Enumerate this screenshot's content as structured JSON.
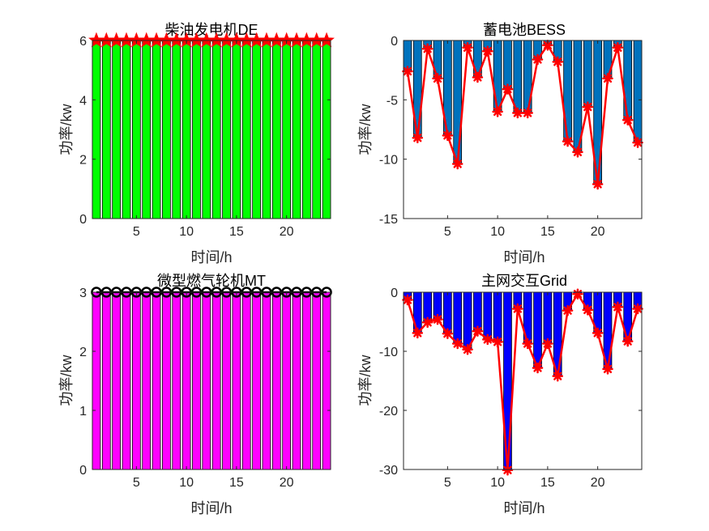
{
  "chart_data": [
    {
      "id": "de",
      "type": "bar",
      "title": "柴油发电机DE",
      "xlabel": "时间/h",
      "ylabel": "功率/kw",
      "x": [
        1,
        2,
        3,
        4,
        5,
        6,
        7,
        8,
        9,
        10,
        11,
        12,
        13,
        14,
        15,
        16,
        17,
        18,
        19,
        20,
        21,
        22,
        23,
        24
      ],
      "values": [
        6,
        6,
        6,
        6,
        6,
        6,
        6,
        6,
        6,
        6,
        6,
        6,
        6,
        6,
        6,
        6,
        6,
        6,
        6,
        6,
        6,
        6,
        6,
        6
      ],
      "xlim": [
        0.6,
        24.4
      ],
      "ylim": [
        0,
        6
      ],
      "xticks": [
        5,
        10,
        15,
        20
      ],
      "yticks": [
        0,
        2,
        4,
        6
      ],
      "bar_color": "#00ff00",
      "line_color": "#ff0000",
      "marker": "star",
      "marker_edge": "#ff0000"
    },
    {
      "id": "bess",
      "type": "bar",
      "title": "蓄电池BESS",
      "xlabel": "时间/h",
      "ylabel": "功率/kw",
      "x": [
        1,
        2,
        3,
        4,
        5,
        6,
        7,
        8,
        9,
        10,
        11,
        12,
        13,
        14,
        15,
        16,
        17,
        18,
        19,
        20,
        21,
        22,
        23,
        24
      ],
      "values": [
        -2.6,
        -8.2,
        -0.7,
        -3.2,
        -8.0,
        -10.4,
        -0.6,
        -3.1,
        -0.9,
        -6.0,
        -4.1,
        -6.1,
        -6.1,
        -1.6,
        -0.4,
        -1.8,
        -8.5,
        -9.4,
        -5.6,
        -12.1,
        -3.2,
        -0.6,
        -6.7,
        -8.6
      ],
      "xlim": [
        0.6,
        24.4
      ],
      "ylim": [
        -15,
        0
      ],
      "xticks": [
        5,
        10,
        15,
        20
      ],
      "yticks": [
        -15,
        -10,
        -5,
        0
      ],
      "bar_color": "#0072bd",
      "line_color": "#ff0000",
      "marker": "asterisk",
      "marker_edge": "#ff0000"
    },
    {
      "id": "mt",
      "type": "bar",
      "title": "微型燃气轮机MT",
      "xlabel": "时间/h",
      "ylabel": "功率/kw",
      "x": [
        1,
        2,
        3,
        4,
        5,
        6,
        7,
        8,
        9,
        10,
        11,
        12,
        13,
        14,
        15,
        16,
        17,
        18,
        19,
        20,
        21,
        22,
        23,
        24
      ],
      "values": [
        3,
        3,
        3,
        3,
        3,
        3,
        3,
        3,
        3,
        3,
        3,
        3,
        3,
        3,
        3,
        3,
        3,
        3,
        3,
        3,
        3,
        3,
        3,
        3
      ],
      "xlim": [
        0.6,
        24.4
      ],
      "ylim": [
        0,
        3
      ],
      "xticks": [
        5,
        10,
        15,
        20
      ],
      "yticks": [
        0,
        1,
        2,
        3
      ],
      "bar_color": "#ff00ff",
      "line_color": "#000000",
      "marker": "circle",
      "marker_edge": "#000000"
    },
    {
      "id": "grid",
      "type": "bar",
      "title": "主网交互Grid",
      "xlabel": "时间/h",
      "ylabel": "功率/kw",
      "x": [
        1,
        2,
        3,
        4,
        5,
        6,
        7,
        8,
        9,
        10,
        11,
        12,
        13,
        14,
        15,
        16,
        17,
        18,
        19,
        20,
        21,
        22,
        23,
        24
      ],
      "values": [
        -1.3,
        -6.9,
        -5.1,
        -4.6,
        -7.0,
        -8.7,
        -9.7,
        -6.6,
        -8.0,
        -8.4,
        -30.1,
        -2.8,
        -8.7,
        -12.8,
        -8.7,
        -14.2,
        -3.1,
        -0.3,
        -3.0,
        -6.9,
        -13.0,
        -2.5,
        -8.3,
        -2.8
      ],
      "xlim": [
        0.6,
        24.4
      ],
      "ylim": [
        -30,
        0
      ],
      "xticks": [
        5,
        10,
        15,
        20
      ],
      "yticks": [
        -30,
        -20,
        -10,
        0
      ],
      "bar_color": "#0000ff",
      "line_color": "#ff0000",
      "marker": "asterisk",
      "marker_edge": "#ff0000"
    }
  ]
}
